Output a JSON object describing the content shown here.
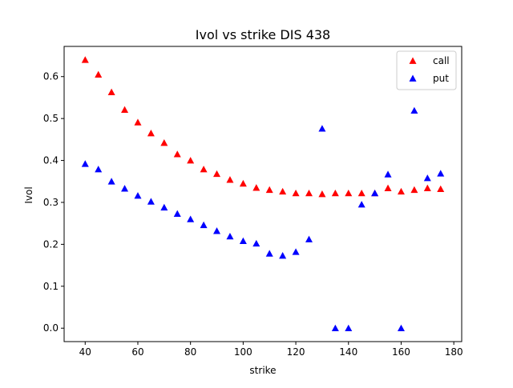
{
  "chart_data": {
    "type": "scatter",
    "title": "Ivol vs strike DIS 438",
    "xlabel": "strike",
    "ylabel": "Ivol",
    "xlim": [
      32,
      183
    ],
    "ylim": [
      -0.032,
      0.672
    ],
    "xticks": [
      40,
      60,
      80,
      100,
      120,
      140,
      160,
      180
    ],
    "yticks": [
      0.0,
      0.1,
      0.2,
      0.3,
      0.4,
      0.5,
      0.6
    ],
    "grid": false,
    "legend_position": "top-right",
    "marker": "triangle-up",
    "series": [
      {
        "name": "call",
        "color": "#ff0000",
        "x": [
          40,
          45,
          50,
          55,
          60,
          65,
          70,
          75,
          80,
          85,
          90,
          95,
          100,
          105,
          110,
          115,
          120,
          125,
          130,
          135,
          140,
          145,
          150,
          155,
          160,
          165,
          170,
          175
        ],
        "y": [
          0.64,
          0.605,
          0.563,
          0.521,
          0.491,
          0.465,
          0.442,
          0.415,
          0.4,
          0.379,
          0.368,
          0.354,
          0.345,
          0.335,
          0.33,
          0.326,
          0.322,
          0.322,
          0.32,
          0.322,
          0.322,
          0.322,
          0.322,
          0.334,
          0.326,
          0.33,
          0.334,
          0.332
        ]
      },
      {
        "name": "put",
        "color": "#0000ff",
        "x": [
          40,
          45,
          50,
          55,
          60,
          65,
          70,
          75,
          80,
          85,
          90,
          95,
          100,
          105,
          110,
          115,
          120,
          125,
          130,
          135,
          140,
          145,
          150,
          155,
          160,
          165,
          170,
          175
        ],
        "y": [
          0.392,
          0.379,
          0.35,
          0.333,
          0.316,
          0.302,
          0.288,
          0.273,
          0.26,
          0.246,
          0.232,
          0.219,
          0.208,
          0.202,
          0.178,
          0.173,
          0.182,
          0.212,
          0.476,
          0.0,
          0.0,
          0.295,
          0.322,
          0.367,
          0.0,
          0.519,
          0.358,
          0.369
        ]
      }
    ]
  }
}
